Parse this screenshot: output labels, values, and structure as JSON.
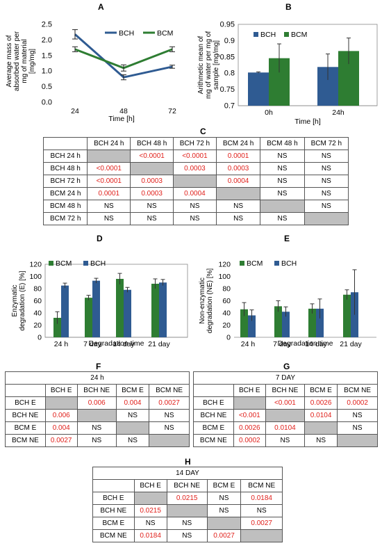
{
  "colors": {
    "bch": "#2f5b92",
    "bcm": "#2e7d32",
    "red": "#e0201b",
    "gray": "#bfbfbf"
  },
  "panels": {
    "a": "A",
    "b": "B",
    "c": "C",
    "d": "D",
    "e": "E",
    "f": "F",
    "g": "G",
    "h": "H"
  },
  "chart_data": [
    {
      "id": "A",
      "type": "line",
      "x": [
        "24",
        "48",
        "72"
      ],
      "xlabel": "Time [h]",
      "ylabel": "Average mass of absorbed water per mg of material [mg/mg]",
      "ylim": [
        0,
        2.5
      ],
      "yticks": [
        "0.0",
        "0.5",
        "1.0",
        "1.5",
        "2.0",
        "2.5"
      ],
      "series": [
        {
          "name": "BCH",
          "values": [
            2.18,
            0.8,
            1.14
          ],
          "err": [
            0.15,
            0.08,
            0.05
          ]
        },
        {
          "name": "BCM",
          "values": [
            1.7,
            1.1,
            1.7
          ],
          "err": [
            0.08,
            0.1,
            0.08
          ]
        }
      ]
    },
    {
      "id": "B",
      "type": "bar",
      "categories": [
        "0h",
        "24h"
      ],
      "xlabel": "Time [h]",
      "ylabel": "Arithmetic mean of mg of water per mg of sample [mg/mg]",
      "ylim": [
        0.7,
        0.95
      ],
      "yticks": [
        "0.7",
        "0.75",
        "0.8",
        "0.85",
        "0.9",
        "0.95"
      ],
      "series": [
        {
          "name": "BCH",
          "values": [
            0.802,
            0.819
          ],
          "err": [
            0.002,
            0.04
          ]
        },
        {
          "name": "BCM",
          "values": [
            0.846,
            0.868
          ],
          "err": [
            0.044,
            0.04
          ]
        }
      ]
    },
    {
      "id": "D",
      "type": "bar",
      "categories": [
        "24 h",
        "7 day",
        "14 day",
        "21 day"
      ],
      "xlabel": "Degradation time",
      "ylabel": "Enzymatic degradation (E) [%]",
      "ylim": [
        0,
        120
      ],
      "yticks": [
        "0",
        "20",
        "40",
        "60",
        "80",
        "100",
        "120"
      ],
      "series": [
        {
          "name": "BCM",
          "values": [
            32,
            65,
            96,
            88
          ],
          "err": [
            10,
            4,
            9,
            8
          ]
        },
        {
          "name": "BCH",
          "values": [
            85,
            93,
            78,
            90
          ],
          "err": [
            4,
            4,
            4,
            5
          ]
        }
      ]
    },
    {
      "id": "E",
      "type": "bar",
      "categories": [
        "24 h",
        "7 day",
        "14 day",
        "21 day"
      ],
      "xlabel": "Degradation time",
      "ylabel": "Non-enzymatic degradation (NE) [%]",
      "ylim": [
        0,
        120
      ],
      "yticks": [
        "0",
        "20",
        "40",
        "60",
        "80",
        "100",
        "120"
      ],
      "series": [
        {
          "name": "BCM",
          "values": [
            46,
            51,
            47,
            70
          ],
          "err": [
            11,
            9,
            8,
            8
          ]
        },
        {
          "name": "BCH",
          "values": [
            36,
            42,
            47,
            74
          ],
          "err": [
            9,
            8,
            16,
            37
          ]
        }
      ]
    }
  ],
  "table_c": {
    "header": [
      "",
      "BCH 24 h",
      "BCH 48 h",
      "BCH 72 h",
      "BCM 24 h",
      "BCM 48 h",
      "BCM 72 h"
    ],
    "rows": [
      [
        "BCH 24 h",
        "",
        "<0.0001",
        "<0.0001",
        "0.0001",
        "NS",
        "NS"
      ],
      [
        "BCH 48 h",
        "<0.0001",
        "",
        "0.0003",
        "0.0003",
        "NS",
        "NS"
      ],
      [
        "BCH 72 h",
        "<0.0001",
        "0.0003",
        "",
        "0.0004",
        "NS",
        "NS"
      ],
      [
        "BCM 24 h",
        "0.0001",
        "0.0003",
        "0.0004",
        "",
        "NS",
        "NS"
      ],
      [
        "BCM 48 h",
        "NS",
        "NS",
        "NS",
        "NS",
        "",
        "NS"
      ],
      [
        "BCM 72 h",
        "NS",
        "NS",
        "NS",
        "NS",
        "NS",
        ""
      ]
    ]
  },
  "table_f": {
    "caption": "24 h",
    "header": [
      "",
      "BCH E",
      "BCH NE",
      "BCM E",
      "BCM NE"
    ],
    "rows": [
      [
        "BCH E",
        "",
        "0.006",
        "0.004",
        "0.0027"
      ],
      [
        "BCH NE",
        "0.006",
        "",
        "NS",
        "NS"
      ],
      [
        "BCM E",
        "0.004",
        "NS",
        "",
        "NS"
      ],
      [
        "BCM NE",
        "0.0027",
        "NS",
        "NS",
        ""
      ]
    ]
  },
  "table_g": {
    "caption": "7 DAY",
    "header": [
      "",
      "BCH E",
      "BCH NE",
      "BCM E",
      "BCM NE"
    ],
    "rows": [
      [
        "BCH E",
        "",
        "<0.001",
        "0.0026",
        "0.0002"
      ],
      [
        "BCH NE",
        "<0.001",
        "",
        "0.0104",
        "NS"
      ],
      [
        "BCM E",
        "0.0026",
        "0.0104",
        "",
        "NS"
      ],
      [
        "BCM NE",
        "0.0002",
        "NS",
        "NS",
        ""
      ]
    ]
  },
  "table_h": {
    "caption": "14 DAY",
    "header": [
      "",
      "BCH E",
      "BCH NE",
      "BCM E",
      "BCM NE"
    ],
    "rows": [
      [
        "BCH E",
        "",
        "0.0215",
        "NS",
        "0.0184"
      ],
      [
        "BCH NE",
        "0.0215",
        "",
        "NS",
        "NS"
      ],
      [
        "BCM E",
        "NS",
        "NS",
        "",
        "0.0027"
      ],
      [
        "BCM NE",
        "0.0184",
        "NS",
        "0.0027",
        ""
      ]
    ]
  }
}
